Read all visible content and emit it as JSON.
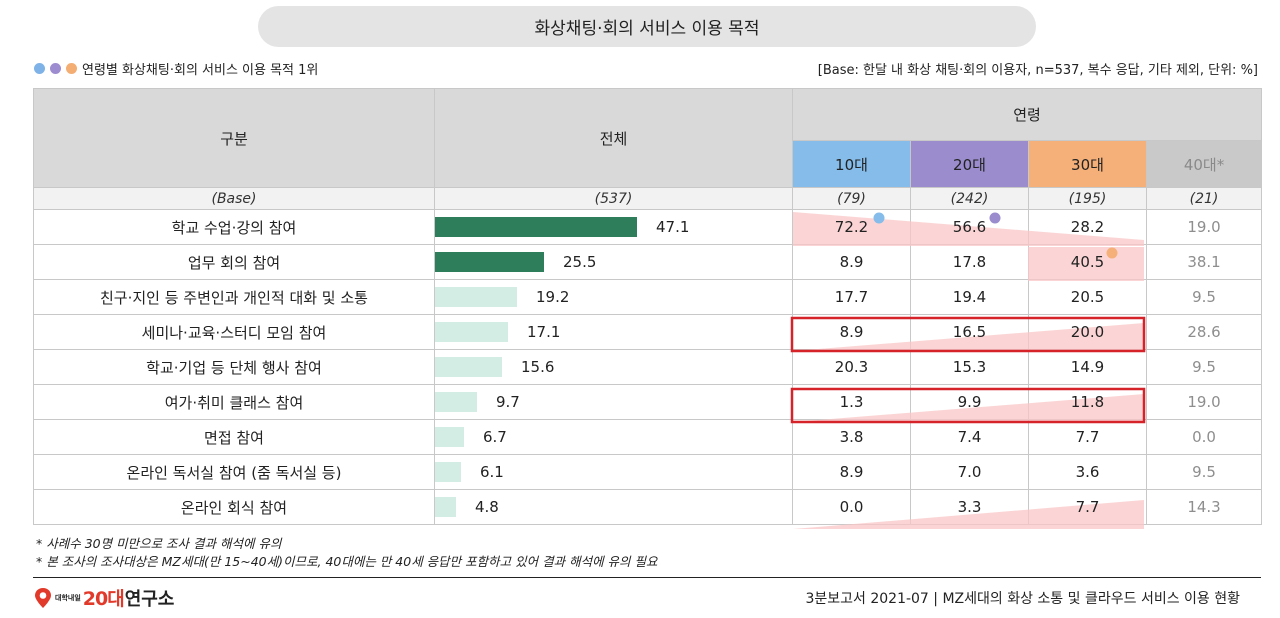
{
  "title": "화상채팅·회의 서비스 이용 목적",
  "legend": {
    "dot_colors": [
      "#7fb3e8",
      "#9d8ccf",
      "#f4ad73"
    ],
    "text": "연령별 화상채팅·회의 서비스 이용 목적 1위"
  },
  "base_note": "[Base: 한달 내 화상 채팅·회의 이용자, n=537, 복수 응답, 기타 제외, 단위: %]",
  "header": {
    "category": "구분",
    "total": "전체",
    "age_group": "연령",
    "ages": [
      "10대",
      "20대",
      "30대",
      "40대*"
    ]
  },
  "base_row": {
    "label": "(Base)",
    "total": "(537)",
    "ages": [
      "(79)",
      "(242)",
      "(195)",
      "(21)"
    ]
  },
  "colors": {
    "age_10": "#85bce9",
    "age_20": "#9b8ccd",
    "age_30": "#f5b07a",
    "age_40": "#c9c9c9",
    "bar_top": "#2e7d5b",
    "bar_other": "#d4ede4",
    "highlight_pink": "#f9c7c7",
    "box_red": "#d6232a"
  },
  "chart_data": {
    "type": "table",
    "title": "화상채팅·회의 서비스 이용 목적",
    "unit": "%",
    "series_names": [
      "전체",
      "10대",
      "20대",
      "30대",
      "40대*"
    ],
    "rows": [
      {
        "label": "학교 수업·강의 참여",
        "total": "47.1",
        "ages": [
          "72.2",
          "56.6",
          "28.2",
          "19.0"
        ]
      },
      {
        "label": "업무 회의 참여",
        "total": "25.5",
        "ages": [
          "8.9",
          "17.8",
          "40.5",
          "38.1"
        ]
      },
      {
        "label": "친구·지인 등 주변인과 개인적 대화 및 소통",
        "total": "19.2",
        "ages": [
          "17.7",
          "19.4",
          "20.5",
          "9.5"
        ]
      },
      {
        "label": "세미나·교육·스터디 모임 참여",
        "total": "17.1",
        "ages": [
          "8.9",
          "16.5",
          "20.0",
          "28.6"
        ]
      },
      {
        "label": "학교·기업 등 단체 행사 참여",
        "total": "15.6",
        "ages": [
          "20.3",
          "15.3",
          "14.9",
          "9.5"
        ]
      },
      {
        "label": "여가·취미 클래스 참여",
        "total": "9.7",
        "ages": [
          "1.3",
          "9.9",
          "11.8",
          "19.0"
        ]
      },
      {
        "label": "면접 참여",
        "total": "6.7",
        "ages": [
          "3.8",
          "7.4",
          "7.7",
          "0.0"
        ]
      },
      {
        "label": "온라인 독서실 참여 (줌 독서실 등)",
        "total": "6.1",
        "ages": [
          "8.9",
          "7.0",
          "3.6",
          "9.5"
        ]
      },
      {
        "label": "온라인 회식 참여",
        "total": "4.8",
        "ages": [
          "0.0",
          "3.3",
          "7.7",
          "14.3"
        ]
      }
    ],
    "top_rank_by_age": {
      "10대": "학교 수업·강의 참여",
      "20대": "학교 수업·강의 참여",
      "30대": "업무 회의 참여"
    },
    "boxed_rows": [
      "세미나·교육·스터디 모임 참여",
      "여가·취미 클래스 참여"
    ]
  },
  "notes": [
    "* 사례수 30명 미만으로 조사 결과 해석에 유의",
    "* 본 조사의 조사대상은 MZ세대(만 15~40세)이므로, 40대에는 만 40세 응답만 포함하고 있어 결과 해석에 유의 필요"
  ],
  "logo": {
    "small_top": "대학내일",
    "number": "20대",
    "rest": "연구소"
  },
  "footer": "3분보고서 2021-07 | MZ세대의 화상 소통 및 클라우드 서비스 이용 현황"
}
